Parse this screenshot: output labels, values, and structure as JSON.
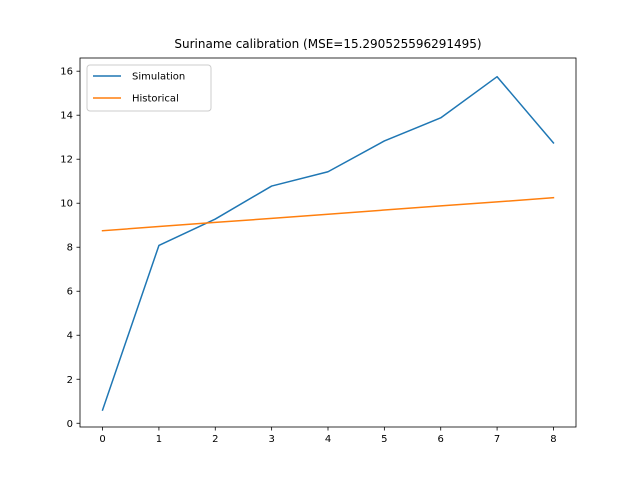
{
  "chart_data": {
    "type": "line",
    "title": "Suriname calibration (MSE=15.290525596291495)",
    "xlabel": "",
    "ylabel": "",
    "x": [
      0,
      1,
      2,
      3,
      4,
      5,
      6,
      7,
      8
    ],
    "xlim": [
      -0.4,
      8.4
    ],
    "ylim": [
      -0.17,
      16.6
    ],
    "xticks": [
      0,
      1,
      2,
      3,
      4,
      5,
      6,
      7,
      8
    ],
    "yticks": [
      0,
      2,
      4,
      6,
      8,
      10,
      12,
      14,
      16
    ],
    "grid": false,
    "legend_position": "upper-left",
    "series": [
      {
        "name": "Simulation",
        "color": "#1f77b4",
        "values": [
          0.6,
          8.08,
          9.28,
          10.78,
          11.43,
          12.83,
          13.88,
          15.75,
          12.74
        ]
      },
      {
        "name": "Historical",
        "color": "#ff7f0e",
        "values": [
          8.75,
          8.94,
          9.13,
          9.31,
          9.5,
          9.69,
          9.88,
          10.06,
          10.25
        ]
      }
    ]
  }
}
